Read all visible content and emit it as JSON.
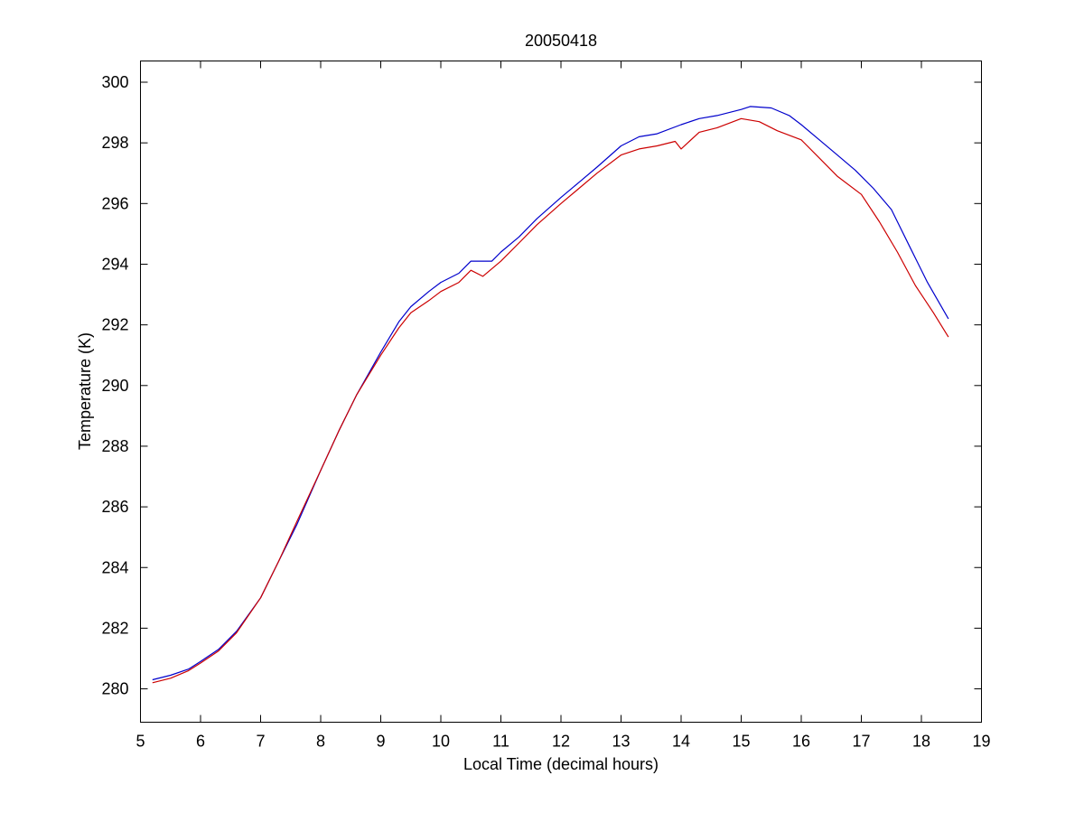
{
  "chart_data": {
    "type": "line",
    "title": "20050418",
    "xlabel": "Local Time (decimal hours)",
    "ylabel": "Temperature (K)",
    "xlim": [
      5,
      19
    ],
    "ylim": [
      278.9,
      300.7
    ],
    "xticks": [
      5,
      6,
      7,
      8,
      9,
      10,
      11,
      12,
      13,
      14,
      15,
      16,
      17,
      18,
      19
    ],
    "yticks": [
      280,
      282,
      284,
      286,
      288,
      290,
      292,
      294,
      296,
      298,
      300
    ],
    "grid": false,
    "legend": "none",
    "series": [
      {
        "color": "#0000cc",
        "x": [
          5.2,
          5.5,
          5.8,
          6.0,
          6.3,
          6.6,
          7.0,
          7.3,
          7.6,
          8.0,
          8.3,
          8.6,
          9.0,
          9.3,
          9.5,
          9.8,
          10.0,
          10.3,
          10.5,
          10.85,
          11.0,
          11.3,
          11.6,
          12.0,
          12.3,
          12.6,
          13.0,
          13.3,
          13.6,
          14.0,
          14.3,
          14.6,
          15.0,
          15.15,
          15.5,
          15.8,
          16.0,
          16.3,
          16.6,
          16.9,
          17.2,
          17.5,
          17.8,
          18.1,
          18.45
        ],
        "values": [
          280.3,
          280.45,
          280.65,
          280.9,
          281.3,
          281.9,
          283.0,
          284.2,
          285.4,
          287.2,
          288.5,
          289.7,
          291.1,
          292.1,
          292.6,
          293.1,
          293.4,
          293.7,
          294.1,
          294.1,
          294.4,
          294.9,
          295.5,
          296.2,
          296.7,
          297.2,
          297.9,
          298.2,
          298.3,
          298.6,
          298.8,
          298.9,
          299.1,
          299.2,
          299.15,
          298.9,
          298.6,
          298.1,
          297.6,
          297.1,
          296.5,
          295.8,
          294.6,
          293.4,
          292.2
        ]
      },
      {
        "color": "#cc0000",
        "x": [
          5.2,
          5.5,
          5.8,
          6.0,
          6.3,
          6.6,
          7.0,
          7.3,
          7.6,
          8.0,
          8.3,
          8.6,
          9.0,
          9.3,
          9.5,
          9.8,
          10.0,
          10.3,
          10.5,
          10.7,
          11.0,
          11.3,
          11.6,
          12.0,
          12.3,
          12.6,
          13.0,
          13.3,
          13.6,
          13.9,
          14.0,
          14.3,
          14.6,
          15.0,
          15.3,
          15.6,
          16.0,
          16.3,
          16.6,
          17.0,
          17.3,
          17.6,
          17.9,
          18.2,
          18.45
        ],
        "values": [
          280.2,
          280.35,
          280.6,
          280.85,
          281.25,
          281.85,
          283.0,
          284.2,
          285.5,
          287.2,
          288.5,
          289.7,
          291.0,
          291.9,
          292.4,
          292.8,
          293.1,
          293.4,
          293.8,
          293.6,
          294.1,
          294.7,
          295.3,
          296.0,
          296.5,
          297.0,
          297.6,
          297.8,
          297.9,
          298.05,
          297.8,
          298.35,
          298.5,
          298.8,
          298.7,
          298.4,
          298.1,
          297.5,
          296.9,
          296.3,
          295.4,
          294.4,
          293.3,
          292.4,
          291.6
        ]
      }
    ]
  }
}
